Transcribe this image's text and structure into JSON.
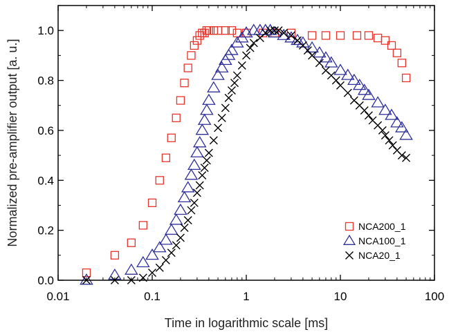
{
  "colors": {
    "NCA200_1": "#e8322a",
    "NCA100_1": "#2f2f9a",
    "NCA20_1": "#000000"
  },
  "chart_data": {
    "type": "scatter",
    "title": "",
    "xlabel": "Time in logarithmic scale [ms]",
    "ylabel": "Normalized pre-amplifier output [a. u.]",
    "xscale": "log",
    "xlim": [
      0.01,
      100
    ],
    "ylim": [
      0,
      1.1
    ],
    "xticks": [
      0.01,
      0.1,
      1,
      10,
      100
    ],
    "xtick_labels": [
      "0.01",
      "0.1",
      "1",
      "10",
      "100"
    ],
    "yticks": [
      0.0,
      0.2,
      0.4,
      0.6,
      0.8,
      1.0
    ],
    "ytick_labels": [
      "0.0",
      "0.2",
      "0.4",
      "0.6",
      "0.8",
      "1.0"
    ],
    "grid": false,
    "legend_position": "bottom-right",
    "series": [
      {
        "name": "NCA200_1",
        "marker": "square",
        "x": [
          0.02,
          0.04,
          0.06,
          0.08,
          0.1,
          0.12,
          0.14,
          0.16,
          0.18,
          0.2,
          0.22,
          0.24,
          0.26,
          0.28,
          0.3,
          0.32,
          0.34,
          0.36,
          0.38,
          0.4,
          0.45,
          0.5,
          0.6,
          0.7,
          0.8,
          1,
          1.5,
          2,
          3,
          5,
          7,
          10,
          15,
          20,
          25,
          30,
          35,
          40,
          45,
          50
        ],
        "y": [
          0.03,
          0.1,
          0.15,
          0.22,
          0.31,
          0.4,
          0.49,
          0.57,
          0.65,
          0.72,
          0.79,
          0.85,
          0.9,
          0.94,
          0.96,
          0.98,
          0.99,
          0.99,
          1.0,
          1.0,
          1.0,
          1.0,
          1.0,
          1.0,
          0.99,
          0.99,
          0.99,
          0.99,
          0.99,
          0.98,
          0.98,
          0.98,
          0.98,
          0.98,
          0.97,
          0.96,
          0.94,
          0.91,
          0.87,
          0.81
        ]
      },
      {
        "name": "NCA100_1",
        "marker": "triangle",
        "x": [
          0.02,
          0.04,
          0.06,
          0.08,
          0.1,
          0.12,
          0.14,
          0.16,
          0.18,
          0.2,
          0.22,
          0.24,
          0.26,
          0.28,
          0.3,
          0.32,
          0.34,
          0.36,
          0.38,
          0.4,
          0.45,
          0.5,
          0.55,
          0.6,
          0.65,
          0.7,
          0.8,
          0.9,
          1,
          1.2,
          1.4,
          1.6,
          1.8,
          2,
          2.5,
          3,
          3.5,
          4,
          5,
          6,
          7,
          8,
          10,
          12,
          14,
          16,
          18,
          20,
          25,
          30,
          35,
          40,
          45,
          50
        ],
        "y": [
          0.0,
          0.02,
          0.04,
          0.07,
          0.1,
          0.13,
          0.16,
          0.2,
          0.24,
          0.28,
          0.33,
          0.37,
          0.42,
          0.46,
          0.51,
          0.55,
          0.6,
          0.64,
          0.68,
          0.72,
          0.77,
          0.82,
          0.85,
          0.88,
          0.9,
          0.92,
          0.95,
          0.97,
          0.99,
          1.0,
          1.0,
          1.0,
          1.0,
          0.99,
          0.98,
          0.97,
          0.96,
          0.95,
          0.93,
          0.91,
          0.89,
          0.87,
          0.84,
          0.82,
          0.8,
          0.78,
          0.76,
          0.74,
          0.71,
          0.68,
          0.66,
          0.63,
          0.61,
          0.58
        ]
      },
      {
        "name": "NCA20_1",
        "marker": "x",
        "x": [
          0.02,
          0.04,
          0.06,
          0.08,
          0.1,
          0.12,
          0.14,
          0.16,
          0.18,
          0.2,
          0.22,
          0.24,
          0.26,
          0.28,
          0.3,
          0.32,
          0.34,
          0.36,
          0.38,
          0.4,
          0.45,
          0.5,
          0.55,
          0.6,
          0.65,
          0.7,
          0.75,
          0.8,
          0.9,
          1,
          1.1,
          1.2,
          1.4,
          1.6,
          1.8,
          2,
          2.2,
          2.5,
          3,
          3.5,
          4,
          4.5,
          5,
          6,
          7,
          8,
          9,
          10,
          12,
          14,
          16,
          18,
          20,
          22,
          25,
          28,
          30,
          33,
          36,
          40,
          45,
          50
        ],
        "y": [
          0.0,
          0.0,
          0.0,
          0.01,
          0.03,
          0.05,
          0.08,
          0.11,
          0.14,
          0.17,
          0.21,
          0.24,
          0.28,
          0.31,
          0.35,
          0.38,
          0.42,
          0.45,
          0.48,
          0.51,
          0.56,
          0.61,
          0.65,
          0.69,
          0.73,
          0.76,
          0.79,
          0.82,
          0.86,
          0.9,
          0.93,
          0.95,
          0.97,
          0.99,
          1.0,
          1.0,
          1.0,
          0.99,
          0.98,
          0.96,
          0.94,
          0.92,
          0.9,
          0.87,
          0.84,
          0.82,
          0.8,
          0.78,
          0.75,
          0.72,
          0.7,
          0.68,
          0.66,
          0.64,
          0.62,
          0.6,
          0.58,
          0.56,
          0.54,
          0.52,
          0.5,
          0.49
        ]
      }
    ]
  }
}
